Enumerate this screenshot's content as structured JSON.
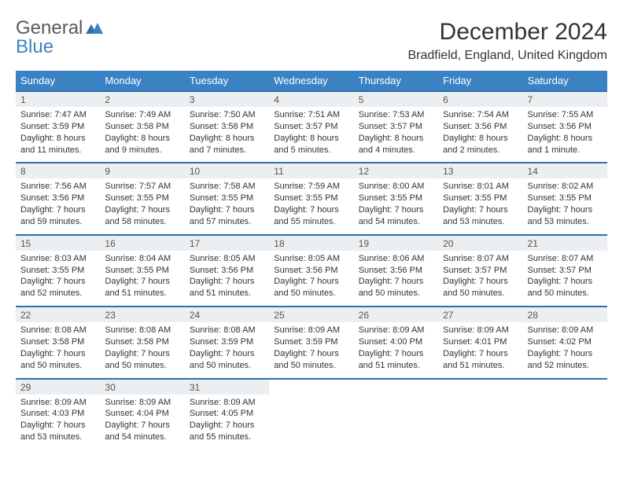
{
  "brand": {
    "part1": "General",
    "part2": "Blue"
  },
  "title": "December 2024",
  "location": "Bradfield, England, United Kingdom",
  "colors": {
    "header_bg": "#3b82c4",
    "header_border": "#2f6fa8",
    "number_bg": "#eceff1",
    "text": "#333333",
    "brand_gray": "#5a5a5a",
    "brand_blue": "#3b82c4"
  },
  "days_of_week": [
    "Sunday",
    "Monday",
    "Tuesday",
    "Wednesday",
    "Thursday",
    "Friday",
    "Saturday"
  ],
  "weeks": [
    [
      {
        "n": "1",
        "sunrise": "7:47 AM",
        "sunset": "3:59 PM",
        "day_h": "8",
        "day_m": "11"
      },
      {
        "n": "2",
        "sunrise": "7:49 AM",
        "sunset": "3:58 PM",
        "day_h": "8",
        "day_m": "9"
      },
      {
        "n": "3",
        "sunrise": "7:50 AM",
        "sunset": "3:58 PM",
        "day_h": "8",
        "day_m": "7"
      },
      {
        "n": "4",
        "sunrise": "7:51 AM",
        "sunset": "3:57 PM",
        "day_h": "8",
        "day_m": "5"
      },
      {
        "n": "5",
        "sunrise": "7:53 AM",
        "sunset": "3:57 PM",
        "day_h": "8",
        "day_m": "4"
      },
      {
        "n": "6",
        "sunrise": "7:54 AM",
        "sunset": "3:56 PM",
        "day_h": "8",
        "day_m": "2"
      },
      {
        "n": "7",
        "sunrise": "7:55 AM",
        "sunset": "3:56 PM",
        "day_h": "8",
        "day_m": "1"
      }
    ],
    [
      {
        "n": "8",
        "sunrise": "7:56 AM",
        "sunset": "3:56 PM",
        "day_h": "7",
        "day_m": "59"
      },
      {
        "n": "9",
        "sunrise": "7:57 AM",
        "sunset": "3:55 PM",
        "day_h": "7",
        "day_m": "58"
      },
      {
        "n": "10",
        "sunrise": "7:58 AM",
        "sunset": "3:55 PM",
        "day_h": "7",
        "day_m": "57"
      },
      {
        "n": "11",
        "sunrise": "7:59 AM",
        "sunset": "3:55 PM",
        "day_h": "7",
        "day_m": "55"
      },
      {
        "n": "12",
        "sunrise": "8:00 AM",
        "sunset": "3:55 PM",
        "day_h": "7",
        "day_m": "54"
      },
      {
        "n": "13",
        "sunrise": "8:01 AM",
        "sunset": "3:55 PM",
        "day_h": "7",
        "day_m": "53"
      },
      {
        "n": "14",
        "sunrise": "8:02 AM",
        "sunset": "3:55 PM",
        "day_h": "7",
        "day_m": "53"
      }
    ],
    [
      {
        "n": "15",
        "sunrise": "8:03 AM",
        "sunset": "3:55 PM",
        "day_h": "7",
        "day_m": "52"
      },
      {
        "n": "16",
        "sunrise": "8:04 AM",
        "sunset": "3:55 PM",
        "day_h": "7",
        "day_m": "51"
      },
      {
        "n": "17",
        "sunrise": "8:05 AM",
        "sunset": "3:56 PM",
        "day_h": "7",
        "day_m": "51"
      },
      {
        "n": "18",
        "sunrise": "8:05 AM",
        "sunset": "3:56 PM",
        "day_h": "7",
        "day_m": "50"
      },
      {
        "n": "19",
        "sunrise": "8:06 AM",
        "sunset": "3:56 PM",
        "day_h": "7",
        "day_m": "50"
      },
      {
        "n": "20",
        "sunrise": "8:07 AM",
        "sunset": "3:57 PM",
        "day_h": "7",
        "day_m": "50"
      },
      {
        "n": "21",
        "sunrise": "8:07 AM",
        "sunset": "3:57 PM",
        "day_h": "7",
        "day_m": "50"
      }
    ],
    [
      {
        "n": "22",
        "sunrise": "8:08 AM",
        "sunset": "3:58 PM",
        "day_h": "7",
        "day_m": "50"
      },
      {
        "n": "23",
        "sunrise": "8:08 AM",
        "sunset": "3:58 PM",
        "day_h": "7",
        "day_m": "50"
      },
      {
        "n": "24",
        "sunrise": "8:08 AM",
        "sunset": "3:59 PM",
        "day_h": "7",
        "day_m": "50"
      },
      {
        "n": "25",
        "sunrise": "8:09 AM",
        "sunset": "3:59 PM",
        "day_h": "7",
        "day_m": "50"
      },
      {
        "n": "26",
        "sunrise": "8:09 AM",
        "sunset": "4:00 PM",
        "day_h": "7",
        "day_m": "51"
      },
      {
        "n": "27",
        "sunrise": "8:09 AM",
        "sunset": "4:01 PM",
        "day_h": "7",
        "day_m": "51"
      },
      {
        "n": "28",
        "sunrise": "8:09 AM",
        "sunset": "4:02 PM",
        "day_h": "7",
        "day_m": "52"
      }
    ],
    [
      {
        "n": "29",
        "sunrise": "8:09 AM",
        "sunset": "4:03 PM",
        "day_h": "7",
        "day_m": "53"
      },
      {
        "n": "30",
        "sunrise": "8:09 AM",
        "sunset": "4:04 PM",
        "day_h": "7",
        "day_m": "54"
      },
      {
        "n": "31",
        "sunrise": "8:09 AM",
        "sunset": "4:05 PM",
        "day_h": "7",
        "day_m": "55"
      },
      null,
      null,
      null,
      null
    ]
  ],
  "labels": {
    "sunrise": "Sunrise:",
    "sunset": "Sunset:",
    "daylight": "Daylight:",
    "hours": "hours",
    "and": "and",
    "minutes": "minutes.",
    "minute": "minute."
  }
}
